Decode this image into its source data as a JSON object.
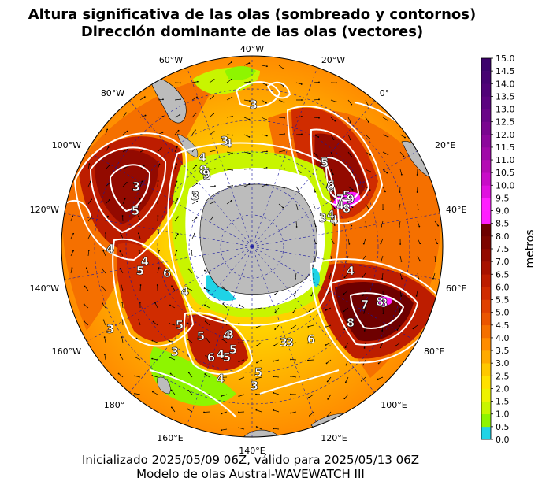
{
  "title_line1": "Altura significativa de las olas (sombreado y contornos)",
  "title_line2": "Dirección dominante de las olas (vectores)",
  "footer_line1": "Inicializado 2025/05/09 06Z, válido para 2025/05/13 06Z",
  "footer_line2": "Modelo de olas Austral-WAVEWATCH III",
  "colorbar": {
    "label": "metros",
    "ticks": [
      "0.0",
      "0.5",
      "1.0",
      "1.5",
      "2.0",
      "2.5",
      "3.0",
      "3.5",
      "4.0",
      "4.5",
      "5.0",
      "5.5",
      "6.0",
      "6.5",
      "7.0",
      "7.5",
      "8.0",
      "8.5",
      "9.0",
      "9.5",
      "10.0",
      "10.5",
      "11.0",
      "11.5",
      "12.0",
      "12.5",
      "13.0",
      "13.5",
      "14.0",
      "14.5",
      "15.0"
    ],
    "colors": [
      "#1fd3e6",
      "#8ef500",
      "#c8f500",
      "#eef200",
      "#ffe100",
      "#ffc800",
      "#ffaa00",
      "#ff8c00",
      "#f57000",
      "#eb5500",
      "#e04000",
      "#d02c00",
      "#bd1d00",
      "#a81200",
      "#930a00",
      "#7d0500",
      "#6e0000",
      "#ff1fff",
      "#ff1fff",
      "#e010e0",
      "#c80cc8",
      "#b40ab4",
      "#a008a8",
      "#8c069c",
      "#7a0590",
      "#6a0488",
      "#5c0380",
      "#500278",
      "#460272",
      "#3c026c"
    ]
  },
  "map": {
    "longitude_labels": [
      {
        "text": "40°W"
      },
      {
        "text": "20°W"
      },
      {
        "text": "0°"
      },
      {
        "text": "20°E"
      },
      {
        "text": "40°E"
      },
      {
        "text": "60°E"
      },
      {
        "text": "80°E"
      },
      {
        "text": "100°E"
      },
      {
        "text": "120°E"
      },
      {
        "text": "140°E"
      },
      {
        "text": "160°E"
      },
      {
        "text": "180°"
      },
      {
        "text": "160°W"
      },
      {
        "text": "140°W"
      },
      {
        "text": "120°W"
      },
      {
        "text": "100°W"
      },
      {
        "text": "80°W"
      },
      {
        "text": "60°W"
      }
    ],
    "contour_labels": [
      "3",
      "4",
      "3",
      "4",
      "3",
      "4",
      "3",
      "8",
      "9",
      "5",
      "3",
      "4",
      "4",
      "5",
      "6",
      "5",
      "4",
      "6",
      "4",
      "3",
      "5",
      "3",
      "6",
      "5",
      "4",
      "5",
      "3",
      "3",
      "4",
      "5",
      "4",
      "3",
      "5",
      "4",
      "5",
      "6",
      "8",
      "7",
      "8",
      "3",
      "4",
      "3",
      "4",
      "5",
      "6",
      "7",
      "8",
      "9",
      "8",
      "3"
    ],
    "colors": {
      "land": "#bcbcbc",
      "ice": "#ffffff",
      "contour": "#ffffff",
      "grid": "#1a1aa0"
    }
  }
}
